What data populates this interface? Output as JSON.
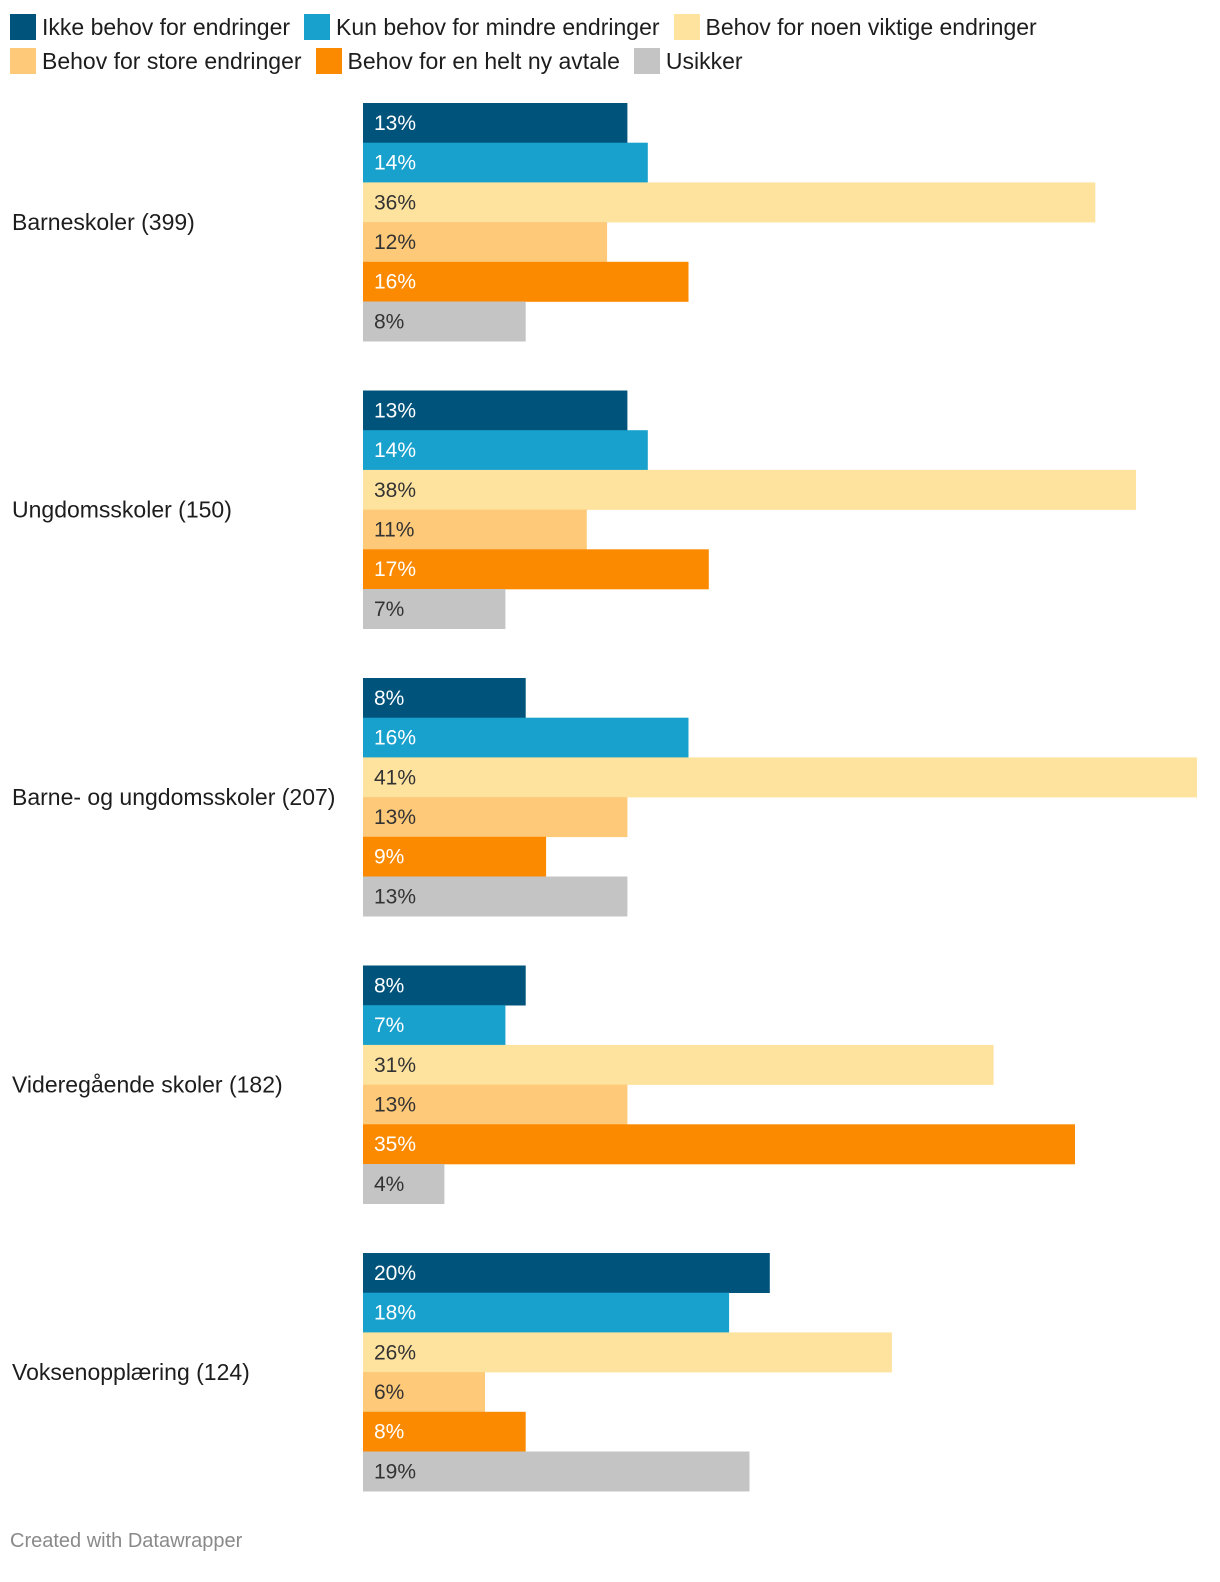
{
  "chart_data": {
    "type": "bar",
    "orientation": "horizontal",
    "unit": "%",
    "series": [
      {
        "name": "Ikke behov for endringer",
        "color": "#00537b",
        "label_color": "#ffffff"
      },
      {
        "name": "Kun behov for mindre endringer",
        "color": "#18a1cd",
        "label_color": "#ffffff"
      },
      {
        "name": "Behov for noen viktige endringer",
        "color": "#fee39f",
        "label_color": "#333333"
      },
      {
        "name": "Behov for store endringer",
        "color": "#fec978",
        "label_color": "#333333"
      },
      {
        "name": "Behov for en helt ny avtale",
        "color": "#fb8a00",
        "label_color": "#ffffff"
      },
      {
        "name": "Usikker",
        "color": "#c4c4c4",
        "label_color": "#333333"
      }
    ],
    "categories": [
      {
        "label": "Barneskoler (399)",
        "values": [
          13,
          14,
          36,
          12,
          16,
          8
        ]
      },
      {
        "label": "Ungdomsskoler (150)",
        "values": [
          13,
          14,
          38,
          11,
          17,
          7
        ]
      },
      {
        "label": "Barne- og ungdomsskoler (207)",
        "values": [
          8,
          16,
          41,
          13,
          9,
          13
        ]
      },
      {
        "label": "Videregående skoler (182)",
        "values": [
          8,
          7,
          31,
          13,
          35,
          4
        ]
      },
      {
        "label": "Voksenopplæring (124)",
        "values": [
          20,
          18,
          26,
          6,
          8,
          19
        ]
      }
    ],
    "xlim": [
      0,
      41
    ]
  },
  "footer": {
    "credit": "Created with Datawrapper"
  }
}
